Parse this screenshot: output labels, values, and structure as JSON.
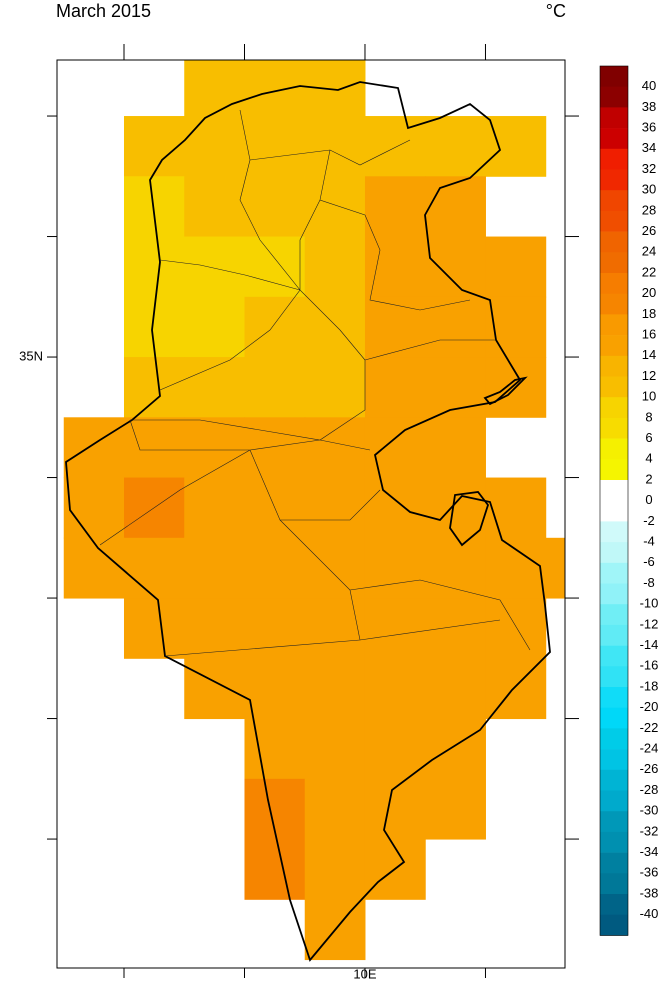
{
  "map": {
    "title": "March 2015",
    "units": "°C",
    "lon_range": [
      7.444,
      11.66
    ],
    "lat_range": [
      29.93,
      37.465
    ],
    "lon_ticks": [
      8,
      9,
      10,
      11
    ],
    "lat_ticks": [
      31,
      32,
      33,
      34,
      35,
      36,
      37
    ],
    "lon_tick_labels": [
      {
        "value": 10,
        "label": "10E"
      }
    ],
    "lat_tick_labels": [
      {
        "value": 35,
        "label": "35N"
      }
    ],
    "rows": [
      {
        "lat": 37.25,
        "lon0": 8.75,
        "values": [
          11,
          11,
          11
        ]
      },
      {
        "lat": 36.75,
        "lon0": 8.25,
        "values": [
          11,
          11,
          11,
          11,
          11,
          11,
          11
        ]
      },
      {
        "lat": 36.25,
        "lon0": 8.25,
        "values": [
          9,
          11,
          11,
          11,
          15,
          15
        ]
      },
      {
        "lat": 35.75,
        "lon0": 8.25,
        "values": [
          9,
          9,
          9,
          11,
          15,
          15,
          15
        ]
      },
      {
        "lat": 35.25,
        "lon0": 8.25,
        "values": [
          9,
          9,
          11,
          11,
          15,
          15,
          15
        ]
      },
      {
        "lat": 34.75,
        "lon0": 8.25,
        "values": [
          11,
          11,
          11,
          11,
          15,
          15,
          15
        ]
      },
      {
        "lat": 34.25,
        "lon0": 7.75,
        "values": [
          15,
          15,
          15,
          15,
          15,
          15,
          15
        ]
      },
      {
        "lat": 33.75,
        "lon0": 7.75,
        "values": [
          15,
          19,
          15,
          15,
          15,
          15,
          15,
          15
        ]
      },
      {
        "lat": 33.25,
        "lon0": 7.75,
        "values": [
          15,
          15,
          15,
          15,
          15,
          15,
          15,
          15,
          15
        ]
      },
      {
        "lat": 32.75,
        "lon0": 8.25,
        "values": [
          15,
          15,
          15,
          15,
          15,
          15,
          15
        ]
      },
      {
        "lat": 32.25,
        "lon0": 8.75,
        "values": [
          15,
          15,
          15,
          15,
          15,
          15
        ]
      },
      {
        "lat": 31.75,
        "lon0": 9.25,
        "values": [
          15,
          15,
          15,
          15
        ]
      },
      {
        "lat": 31.25,
        "lon0": 9.25,
        "values": [
          19,
          15,
          15,
          15
        ]
      },
      {
        "lat": 30.75,
        "lon0": 9.25,
        "values": [
          19,
          15,
          15
        ]
      },
      {
        "lat": 30.25,
        "lon0": 9.75,
        "values": [
          15
        ]
      }
    ],
    "colorbar": {
      "levels": [
        40,
        38,
        36,
        34,
        32,
        30,
        28,
        26,
        24,
        22,
        20,
        18,
        16,
        14,
        12,
        10,
        8,
        6,
        4,
        2,
        0,
        -2,
        -4,
        -6,
        -8,
        -10,
        -12,
        -14,
        -16,
        -18,
        -20,
        -22,
        -24,
        -26,
        -28,
        -30,
        -32,
        -34,
        -36,
        -38,
        -40
      ],
      "colors": [
        "#800000",
        "#8c0000",
        "#c00000",
        "#cc0000",
        "#f01e00",
        "#f02800",
        "#f04600",
        "#f04e00",
        "#f06400",
        "#f06c00",
        "#f67d00",
        "#f68500",
        "#f99a00",
        "#f9a100",
        "#f8b400",
        "#f8be00",
        "#f7d400",
        "#f7dc00",
        "#f5f000",
        "#f5f500",
        "#ffffff",
        "#ffffff",
        "#d0fafa",
        "#c0f8f8",
        "#a0f5f8",
        "#90f2f8",
        "#70eef5",
        "#60ebf5",
        "#40e6f5",
        "#30e2f5",
        "#10dcf8",
        "#00d8f8",
        "#00cce8",
        "#00c4e4",
        "#00b4d4",
        "#00aacc",
        "#0098b8",
        "#0090b0",
        "#0080a0",
        "#007898",
        "#006488",
        "#005a80"
      ]
    }
  }
}
